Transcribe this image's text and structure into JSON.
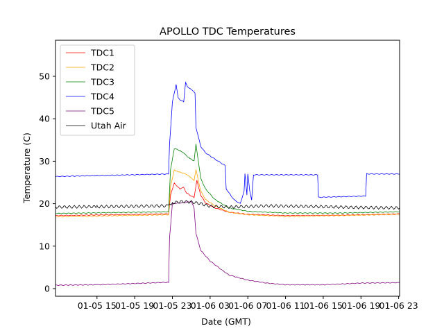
{
  "chart_data": {
    "type": "line",
    "title": "APOLLO TDC Temperatures",
    "xlabel": "Date (GMT)",
    "ylabel": "Temperature (C)",
    "x_units": "hours since 01-05 15:00 GMT",
    "xlim": [
      -4.4,
      32.1
    ],
    "ylim": [
      -1.8,
      58.5
    ],
    "grid": false,
    "legend_position": "top-left",
    "x_ticks": [
      {
        "x": 0,
        "label": "01-05 15"
      },
      {
        "x": 4,
        "label": "01-05 19"
      },
      {
        "x": 8,
        "label": "01-05 23"
      },
      {
        "x": 12,
        "label": "01-06 03"
      },
      {
        "x": 16,
        "label": "01-06 07"
      },
      {
        "x": 20,
        "label": "01-06 11"
      },
      {
        "x": 24,
        "label": "01-06 15"
      },
      {
        "x": 28,
        "label": "01-06 19"
      },
      {
        "x": 32,
        "label": "01-06 23"
      }
    ],
    "y_ticks": [
      {
        "y": 0,
        "label": "0"
      },
      {
        "y": 10,
        "label": "10"
      },
      {
        "y": 20,
        "label": "20"
      },
      {
        "y": 30,
        "label": "30"
      },
      {
        "y": 40,
        "label": "40"
      },
      {
        "y": 50,
        "label": "50"
      }
    ],
    "series": [
      {
        "name": "TDC1",
        "color": "#ff0000",
        "x": [
          -4.4,
          7.6,
          7.8,
          8.2,
          8.8,
          9.2,
          9.5,
          10.0,
          10.3,
          10.6,
          11.0,
          11.5,
          12.5,
          14.0,
          16.0,
          20.0,
          26.0,
          32.1
        ],
        "y": [
          17.2,
          17.6,
          22.0,
          24.8,
          23.5,
          23.8,
          22.5,
          21.8,
          21.5,
          25.5,
          22.0,
          20.2,
          19.0,
          18.0,
          17.5,
          17.2,
          17.3,
          17.6
        ]
      },
      {
        "name": "TDC2",
        "color": "#ffa500",
        "x": [
          -4.4,
          7.6,
          7.8,
          8.2,
          8.6,
          9.2,
          9.6,
          10.0,
          10.3,
          10.5,
          11.0,
          11.5,
          12.5,
          14.0,
          16.0,
          20.0,
          26.0,
          32.1
        ],
        "y": [
          16.9,
          17.4,
          24.0,
          28.0,
          27.5,
          27.2,
          26.8,
          26.0,
          25.5,
          28.0,
          23.0,
          21.0,
          19.5,
          18.0,
          17.4,
          17.0,
          17.2,
          17.5
        ]
      },
      {
        "name": "TDC3",
        "color": "#008000",
        "x": [
          -4.4,
          7.6,
          7.8,
          8.2,
          8.8,
          9.2,
          9.6,
          10.0,
          10.3,
          10.5,
          11.0,
          11.5,
          12.5,
          14.0,
          16.0,
          20.0,
          26.0,
          32.1
        ],
        "y": [
          17.7,
          18.1,
          28.0,
          33.0,
          32.5,
          32.0,
          31.0,
          30.5,
          30.0,
          34.0,
          26.0,
          23.5,
          21.0,
          19.0,
          18.2,
          17.8,
          17.8,
          18.1
        ]
      },
      {
        "name": "TDC4",
        "color": "#0000ff",
        "x": [
          -4.4,
          7.6,
          7.7,
          8.0,
          8.4,
          8.6,
          8.8,
          9.2,
          9.4,
          9.6,
          10.0,
          10.4,
          10.5,
          11.0,
          11.5,
          12.5,
          13.6,
          13.7,
          14.5,
          15.2,
          15.6,
          15.7,
          15.9,
          16.0,
          16.2,
          16.4,
          16.6,
          23.4,
          23.5,
          28.5,
          28.6,
          32.1
        ],
        "y": [
          26.4,
          27.0,
          34.0,
          44.0,
          48.0,
          45.0,
          44.5,
          44.0,
          48.5,
          47.5,
          47.0,
          46.0,
          38.0,
          33.5,
          32.0,
          30.5,
          29.0,
          23.5,
          21.0,
          20.0,
          23.0,
          27.0,
          22.0,
          27.0,
          23.0,
          20.8,
          26.8,
          26.8,
          21.5,
          21.8,
          27.0,
          27.0
        ]
      },
      {
        "name": "TDC5",
        "color": "#800080",
        "x": [
          -4.4,
          0,
          4,
          7.6,
          7.7,
          8.0,
          9.0,
          10.0,
          10.3,
          10.5,
          11.0,
          12.0,
          13.0,
          14.0,
          16.0,
          18.0,
          20.0,
          24.0,
          28.0,
          32.1
        ],
        "y": [
          0.8,
          0.9,
          1.2,
          1.5,
          12.0,
          20.0,
          20.2,
          20.5,
          19.0,
          13.0,
          9.0,
          6.5,
          4.8,
          3.2,
          2.0,
          1.3,
          0.9,
          0.9,
          1.3,
          1.4
        ]
      },
      {
        "name": "Utah Air",
        "color": "#000000",
        "x": [
          -4.4,
          0,
          4,
          7.6,
          8.0,
          9.0,
          10.0,
          11.0,
          12.0,
          14.0,
          18.0,
          24.0,
          28.0,
          32.1
        ],
        "y": [
          19.2,
          19.3,
          19.4,
          19.5,
          20.2,
          20.5,
          20.4,
          20.0,
          19.4,
          19.2,
          19.5,
          19.3,
          19.1,
          19.0
        ],
        "noise": 0.35
      }
    ]
  }
}
